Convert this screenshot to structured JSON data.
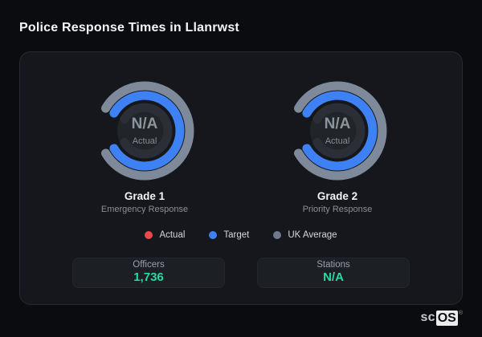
{
  "page": {
    "title": "Police Response Times in Llanrwst"
  },
  "colors": {
    "background": "#0b0c0f",
    "card_background": "#15171c",
    "gauge_track": "#2b2e35",
    "gauge_hollow": "#212429",
    "actual": "#e8474e",
    "target": "#3e81f4",
    "uk_average": "#7e8a99",
    "stat_value": "#2bd9a5"
  },
  "chart_data": [
    {
      "type": "gauge",
      "label": "Grade 1",
      "sublabel": "Emergency Response",
      "center_value": "N/A",
      "center_caption": "Actual",
      "start_angle": -60,
      "end_angle": 240,
      "legend_position": "bottom",
      "rings": [
        {
          "name": "UK Average",
          "color": "#7e8a99",
          "fill_fraction": 1
        },
        {
          "name": "Target",
          "color": "#3e81f4",
          "fill_fraction": 1
        },
        {
          "name": "Actual",
          "color": "#e8474e",
          "fill_fraction": 0
        }
      ]
    },
    {
      "type": "gauge",
      "label": "Grade 2",
      "sublabel": "Priority Response",
      "center_value": "N/A",
      "center_caption": "Actual",
      "start_angle": -60,
      "end_angle": 240,
      "legend_position": "bottom",
      "rings": [
        {
          "name": "UK Average",
          "color": "#7e8a99",
          "fill_fraction": 1
        },
        {
          "name": "Target",
          "color": "#3e81f4",
          "fill_fraction": 1
        },
        {
          "name": "Actual",
          "color": "#e8474e",
          "fill_fraction": 0
        }
      ]
    }
  ],
  "legend": {
    "items": [
      {
        "label": "Actual",
        "color": "#e8474e"
      },
      {
        "label": "Target",
        "color": "#3e81f4"
      },
      {
        "label": "UK Average",
        "color": "#6e7a8a"
      }
    ]
  },
  "stats": [
    {
      "label": "Officers",
      "value": "1,736"
    },
    {
      "label": "Stations",
      "value": "N/A"
    }
  ],
  "branding": {
    "prefix": "sc",
    "suffix": "OS",
    "registered": "®"
  }
}
